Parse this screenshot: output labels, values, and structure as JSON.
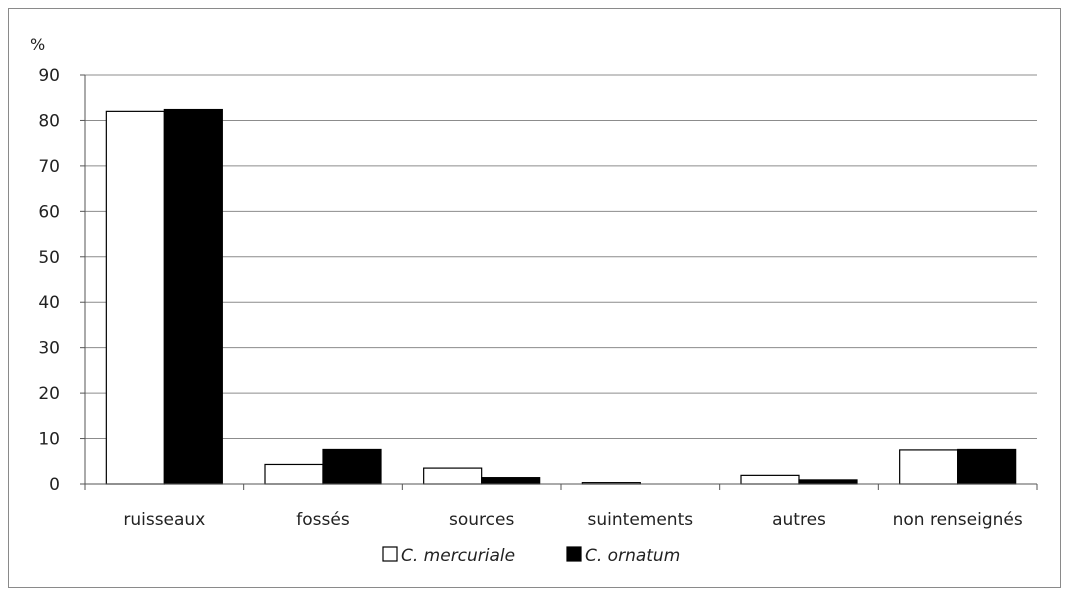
{
  "chart_data": {
    "type": "bar",
    "ylabel": "%",
    "ylim": [
      0,
      90
    ],
    "yticks": [
      0,
      10,
      20,
      30,
      40,
      50,
      60,
      70,
      80,
      90
    ],
    "grid": true,
    "legend_position": "bottom",
    "categories": [
      "ruisseaux",
      "fossés",
      "sources",
      "suintements",
      "autres",
      "non renseignés"
    ],
    "series": [
      {
        "name": "C. mercuriale",
        "fill": "#ffffff",
        "values": [
          82,
          4.3,
          3.5,
          0.3,
          1.9,
          7.5
        ]
      },
      {
        "name": "C. ornatum",
        "fill": "#000000",
        "values": [
          82.4,
          7.6,
          1.4,
          0,
          0.9,
          7.6
        ]
      }
    ]
  }
}
